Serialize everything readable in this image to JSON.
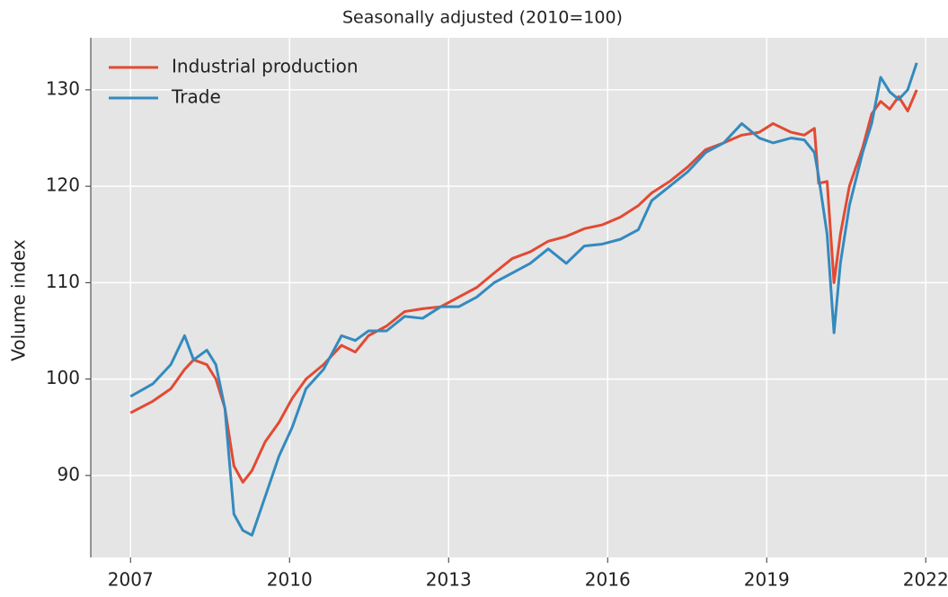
{
  "chart_data": {
    "type": "line",
    "title": "Seasonally adjusted (2010=100)",
    "ylabel": "Volume index",
    "x": [
      2007.0,
      2007.42,
      2007.76,
      2008.02,
      2008.19,
      2008.44,
      2008.61,
      2008.78,
      2008.95,
      2009.12,
      2009.29,
      2009.54,
      2009.8,
      2010.05,
      2010.31,
      2010.64,
      2010.98,
      2011.24,
      2011.49,
      2011.83,
      2012.17,
      2012.51,
      2012.85,
      2013.19,
      2013.53,
      2013.86,
      2014.2,
      2014.54,
      2014.88,
      2015.22,
      2015.56,
      2015.9,
      2016.24,
      2016.58,
      2016.83,
      2017.17,
      2017.51,
      2017.85,
      2018.19,
      2018.53,
      2018.86,
      2019.12,
      2019.46,
      2019.71,
      2019.9,
      2019.98,
      2020.14,
      2020.27,
      2020.39,
      2020.56,
      2020.81,
      2020.98,
      2021.15,
      2021.32,
      2021.49,
      2021.66,
      2021.83
    ],
    "series": [
      {
        "name": "Industrial production",
        "color": "#e24a33",
        "values": [
          96.5,
          97.7,
          99,
          101,
          102,
          101.5,
          100,
          97,
          91,
          89.3,
          90.5,
          93.5,
          95.5,
          98,
          100,
          101.5,
          103.5,
          102.8,
          104.5,
          105.5,
          107,
          107.3,
          107.5,
          108.5,
          109.5,
          111,
          112.5,
          113.2,
          114.3,
          114.8,
          115.6,
          116,
          116.8,
          118,
          119.3,
          120.5,
          122,
          123.8,
          124.5,
          125.3,
          125.6,
          126.5,
          125.6,
          125.3,
          126,
          120.3,
          120.5,
          110,
          115,
          120,
          124,
          127.5,
          128.8,
          128,
          129.3,
          127.8,
          130
        ]
      },
      {
        "name": "Trade",
        "color": "#348abd",
        "values": [
          98.2,
          99.5,
          101.5,
          104.5,
          102,
          103,
          101.5,
          97,
          86,
          84.3,
          83.8,
          87.8,
          92,
          95,
          99,
          101,
          104.5,
          104,
          105,
          105,
          106.5,
          106.3,
          107.5,
          107.5,
          108.5,
          110,
          111,
          112,
          113.5,
          112,
          113.8,
          114,
          114.5,
          115.5,
          118.5,
          120,
          121.5,
          123.5,
          124.5,
          126.5,
          125,
          124.5,
          125,
          124.8,
          123.5,
          121,
          115,
          104.8,
          112,
          118,
          123.5,
          126.5,
          131.3,
          129.8,
          129,
          130,
          132.8
        ]
      }
    ],
    "xlim": [
      2006.25,
      2022.42
    ],
    "xticks": [
      2007,
      2010,
      2013,
      2016,
      2019,
      2022
    ],
    "ylim": [
      81.5,
      135.4
    ],
    "yticks": [
      90,
      100,
      110,
      120,
      130
    ],
    "grid": true,
    "legend": "upper left"
  }
}
